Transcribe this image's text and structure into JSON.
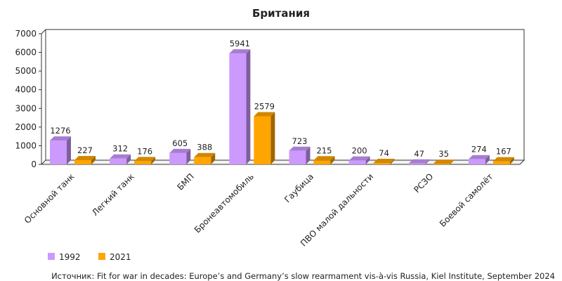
{
  "chart_data": {
    "type": "bar",
    "title": "Британия",
    "categories": [
      "Основной танк",
      "Легкий танк",
      "БМП",
      "Бронеавтомобиль",
      "Гаубица",
      "ПВО малой дальности",
      "РСЗО",
      "Боевой самолёт"
    ],
    "series": [
      {
        "name": "1992",
        "values": [
          1276,
          312,
          605,
          5941,
          723,
          200,
          47,
          274
        ],
        "color": "#cc99ff"
      },
      {
        "name": "2021",
        "values": [
          227,
          176,
          388,
          2579,
          215,
          74,
          35,
          167
        ],
        "color": "#ffa500"
      }
    ],
    "yticks": [
      0,
      1000,
      2000,
      3000,
      4000,
      5000,
      6000,
      7000
    ],
    "ylim": [
      0,
      7000
    ],
    "xlabel": "",
    "ylabel": "",
    "grid": false,
    "legend": "bottom-left",
    "source": "Источник: Fit for war in decades: Europe’s and Germany’s slow rearmament vis-à-vis Russia, Kiel Institute, September 2024"
  }
}
